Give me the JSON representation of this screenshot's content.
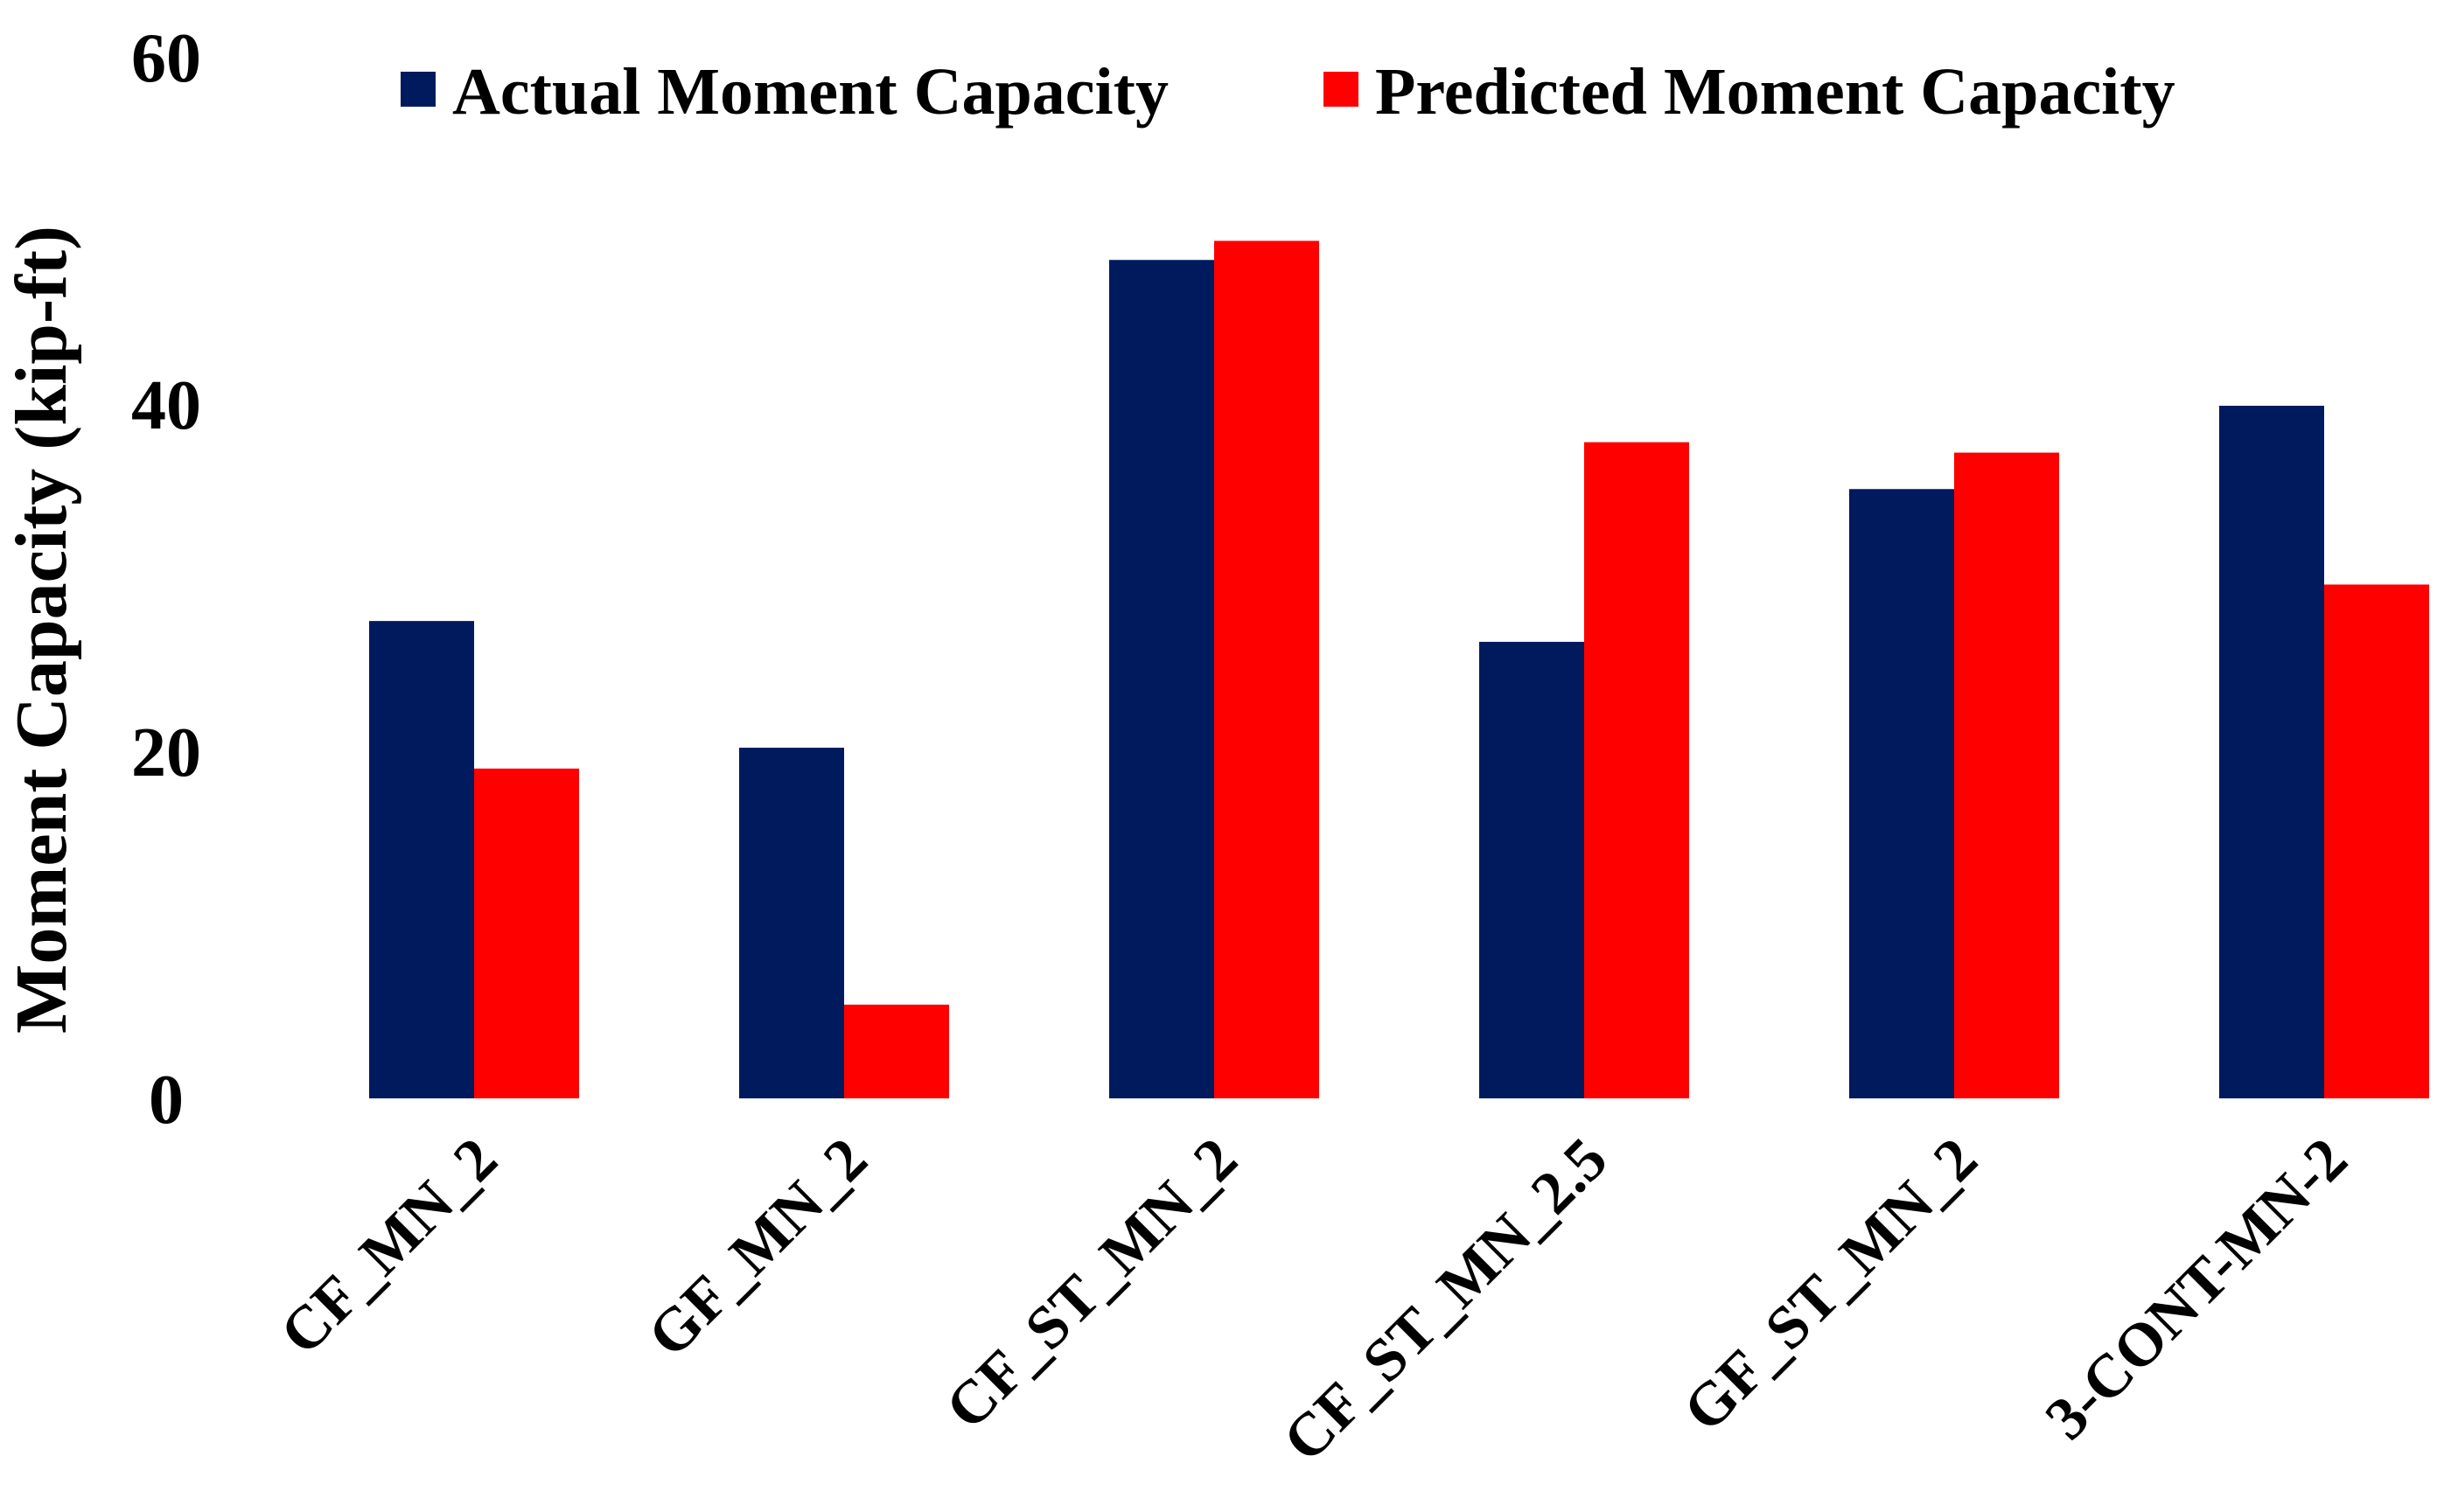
{
  "chart_data": {
    "type": "bar",
    "title": "",
    "xlabel": "",
    "ylabel": "Moment Capacity (kip-ft)",
    "ylim": [
      0,
      60
    ],
    "yticks": [
      0,
      20,
      40,
      60
    ],
    "grid": false,
    "legend_position": "top",
    "categories": [
      "CF_MN_2",
      "GF_MN_2",
      "CF_ST_MN_2",
      "CF_ST_MN_2.5",
      "GF_ST_MN_2",
      "3-CONT-MN-2"
    ],
    "series": [
      {
        "name": "Actual Moment Capacity",
        "color": "#001a5e",
        "values": [
          27.5,
          20.2,
          48.3,
          26.3,
          35.1,
          39.9
        ]
      },
      {
        "name": "Predicted Moment Capacity",
        "color": "#ff0000",
        "values": [
          19.0,
          5.4,
          49.4,
          37.8,
          37.2,
          29.6
        ]
      }
    ]
  }
}
